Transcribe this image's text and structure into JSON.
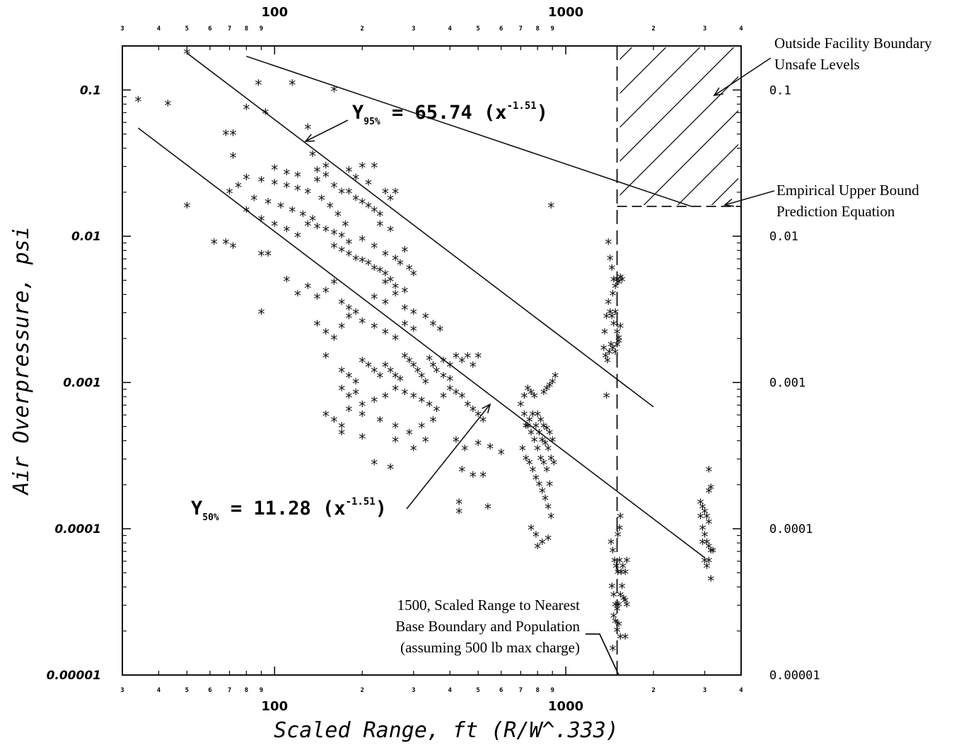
{
  "chart_data": {
    "type": "scatter",
    "title": "",
    "xlabel": "Scaled Range, ft (R/W^.333)",
    "ylabel": "Air Overpressure, psi",
    "xscale": "log",
    "yscale": "log",
    "xlim": [
      30,
      4000
    ],
    "ylim": [
      1e-05,
      0.2
    ],
    "grid": false,
    "x_major_labels": [
      "100",
      "1000"
    ],
    "y_left_labels": [
      "0.1",
      "0.01",
      "0.001",
      "0.0001",
      "0.00001"
    ],
    "y_right_labels": [
      "0.1",
      "0.01",
      "0.001",
      "0.0001",
      "0.00001"
    ],
    "minor_tick_text_x": {
      "below": [
        "3",
        "4",
        "5",
        "6",
        "7",
        "8",
        "9",
        "2",
        "3",
        "4",
        "5",
        "6",
        "7",
        "8",
        "9",
        "2",
        "3",
        "4"
      ],
      "above": [
        "3",
        "4",
        "5",
        "6",
        "7",
        "8",
        "9",
        "2",
        "3",
        "4",
        "5",
        "6",
        "7",
        "8",
        "9",
        "2",
        "3",
        "4"
      ]
    },
    "lines": [
      {
        "label_prefix": "Y",
        "label_sub": "95%",
        "label_body": " = 65.74 (x",
        "label_exp": "-1.51",
        "label_close": ")",
        "coefficient": 65.74,
        "exponent": -1.51,
        "x_range": [
          50,
          2000
        ]
      },
      {
        "label_prefix": "Y",
        "label_sub": "50%",
        "label_body": " = 11.28 (x",
        "label_exp": "-1.51",
        "label_close": ")",
        "coefficient": 11.28,
        "exponent": -1.51,
        "x_range": [
          34,
          3000
        ]
      },
      {
        "name": "Empirical Upper Bound Prediction Equation",
        "points": [
          [
            80,
            0.17
          ],
          [
            2700,
            0.016
          ]
        ]
      }
    ],
    "boundary_line_x": 1500,
    "unsafe_region": {
      "x": [
        1500,
        4000
      ],
      "y": [
        0.016,
        0.2
      ]
    },
    "annotations": {
      "unsafe": [
        "Outside Facility Boundary",
        "Unsafe Levels"
      ],
      "upper_bound": [
        "Empirical Upper Bound",
        "Prediction Equation"
      ],
      "boundary": [
        "1500, Scaled Range to Nearest",
        "Base Boundary and Population",
        "(assuming 500 lb max charge)"
      ]
    },
    "points": [
      [
        50,
        0.18
      ],
      [
        34,
        0.085
      ],
      [
        43,
        0.08
      ],
      [
        50,
        0.016
      ],
      [
        62,
        0.009
      ],
      [
        68,
        0.009
      ],
      [
        72,
        0.0085
      ],
      [
        68,
        0.05
      ],
      [
        72,
        0.05
      ],
      [
        80,
        0.075
      ],
      [
        88,
        0.11
      ],
      [
        93,
        0.07
      ],
      [
        115,
        0.11
      ],
      [
        160,
        0.1
      ],
      [
        72,
        0.035
      ],
      [
        130,
        0.055
      ],
      [
        135,
        0.036
      ],
      [
        90,
        0.0075
      ],
      [
        95,
        0.0075
      ],
      [
        90,
        0.003
      ],
      [
        890,
        0.016
      ],
      [
        75,
        0.022
      ],
      [
        70,
        0.02
      ],
      [
        80,
        0.025
      ],
      [
        90,
        0.024
      ],
      [
        100,
        0.023
      ],
      [
        110,
        0.022
      ],
      [
        120,
        0.021
      ],
      [
        130,
        0.02
      ],
      [
        140,
        0.024
      ],
      [
        150,
        0.026
      ],
      [
        160,
        0.022
      ],
      [
        85,
        0.018
      ],
      [
        95,
        0.017
      ],
      [
        105,
        0.016
      ],
      [
        115,
        0.015
      ],
      [
        125,
        0.014
      ],
      [
        135,
        0.013
      ],
      [
        145,
        0.018
      ],
      [
        155,
        0.016
      ],
      [
        165,
        0.014
      ],
      [
        175,
        0.012
      ],
      [
        80,
        0.015
      ],
      [
        90,
        0.013
      ],
      [
        100,
        0.012
      ],
      [
        110,
        0.011
      ],
      [
        120,
        0.01
      ],
      [
        130,
        0.012
      ],
      [
        140,
        0.0115
      ],
      [
        150,
        0.011
      ],
      [
        160,
        0.0105
      ],
      [
        170,
        0.01
      ],
      [
        180,
        0.02
      ],
      [
        190,
        0.018
      ],
      [
        200,
        0.017
      ],
      [
        210,
        0.016
      ],
      [
        220,
        0.015
      ],
      [
        230,
        0.014
      ],
      [
        240,
        0.02
      ],
      [
        250,
        0.018
      ],
      [
        180,
        0.028
      ],
      [
        200,
        0.03
      ],
      [
        220,
        0.03
      ],
      [
        260,
        0.02
      ],
      [
        100,
        0.029
      ],
      [
        110,
        0.027
      ],
      [
        120,
        0.026
      ],
      [
        140,
        0.028
      ],
      [
        150,
        0.03
      ],
      [
        170,
        0.02
      ],
      [
        190,
        0.025
      ],
      [
        210,
        0.023
      ],
      [
        230,
        0.012
      ],
      [
        250,
        0.011
      ],
      [
        160,
        0.0085
      ],
      [
        170,
        0.008
      ],
      [
        180,
        0.0075
      ],
      [
        190,
        0.007
      ],
      [
        200,
        0.0068
      ],
      [
        210,
        0.0065
      ],
      [
        220,
        0.006
      ],
      [
        230,
        0.0058
      ],
      [
        240,
        0.0055
      ],
      [
        250,
        0.005
      ],
      [
        180,
        0.009
      ],
      [
        200,
        0.0095
      ],
      [
        220,
        0.0085
      ],
      [
        240,
        0.0075
      ],
      [
        260,
        0.007
      ],
      [
        280,
        0.008
      ],
      [
        270,
        0.0065
      ],
      [
        290,
        0.006
      ],
      [
        300,
        0.0055
      ],
      [
        110,
        0.005
      ],
      [
        120,
        0.004
      ],
      [
        130,
        0.0045
      ],
      [
        140,
        0.0038
      ],
      [
        150,
        0.0042
      ],
      [
        160,
        0.0048
      ],
      [
        170,
        0.0035
      ],
      [
        180,
        0.0032
      ],
      [
        190,
        0.003
      ],
      [
        140,
        0.0025
      ],
      [
        150,
        0.0022
      ],
      [
        160,
        0.002
      ],
      [
        170,
        0.0024
      ],
      [
        180,
        0.0028
      ],
      [
        200,
        0.0026
      ],
      [
        220,
        0.0024
      ],
      [
        240,
        0.0022
      ],
      [
        260,
        0.002
      ],
      [
        280,
        0.0025
      ],
      [
        300,
        0.0023
      ],
      [
        240,
        0.0035
      ],
      [
        260,
        0.004
      ],
      [
        280,
        0.0042
      ],
      [
        260,
        0.0045
      ],
      [
        240,
        0.0048
      ],
      [
        220,
        0.0038
      ],
      [
        280,
        0.0032
      ],
      [
        300,
        0.003
      ],
      [
        330,
        0.0028
      ],
      [
        350,
        0.0025
      ],
      [
        370,
        0.0023
      ],
      [
        150,
        0.0015
      ],
      [
        170,
        0.0012
      ],
      [
        180,
        0.0011
      ],
      [
        190,
        0.001
      ],
      [
        200,
        0.0014
      ],
      [
        210,
        0.0013
      ],
      [
        220,
        0.0012
      ],
      [
        230,
        0.0011
      ],
      [
        240,
        0.0013
      ],
      [
        250,
        0.0012
      ],
      [
        260,
        0.0011
      ],
      [
        270,
        0.00105
      ],
      [
        280,
        0.0015
      ],
      [
        290,
        0.0014
      ],
      [
        300,
        0.0013
      ],
      [
        310,
        0.0012
      ],
      [
        320,
        0.0011
      ],
      [
        330,
        0.001
      ],
      [
        340,
        0.00145
      ],
      [
        350,
        0.0013
      ],
      [
        360,
        0.0012
      ],
      [
        380,
        0.0014
      ],
      [
        400,
        0.0013
      ],
      [
        420,
        0.0015
      ],
      [
        440,
        0.0014
      ],
      [
        460,
        0.0015
      ],
      [
        480,
        0.0013
      ],
      [
        500,
        0.0015
      ],
      [
        380,
        0.0011
      ],
      [
        400,
        0.00105
      ],
      [
        170,
        0.0009
      ],
      [
        180,
        0.0008
      ],
      [
        190,
        0.00085
      ],
      [
        200,
        0.0007
      ],
      [
        220,
        0.00075
      ],
      [
        240,
        0.0008
      ],
      [
        260,
        0.0009
      ],
      [
        280,
        0.00085
      ],
      [
        300,
        0.0008
      ],
      [
        320,
        0.00075
      ],
      [
        340,
        0.0007
      ],
      [
        360,
        0.00065
      ],
      [
        380,
        0.0008
      ],
      [
        400,
        0.0009
      ],
      [
        420,
        0.00085
      ],
      [
        440,
        0.0008
      ],
      [
        460,
        0.0007
      ],
      [
        480,
        0.00065
      ],
      [
        500,
        0.0006
      ],
      [
        520,
        0.00055
      ],
      [
        150,
        0.0006
      ],
      [
        160,
        0.00055
      ],
      [
        170,
        0.0005
      ],
      [
        180,
        0.00065
      ],
      [
        200,
        0.0006
      ],
      [
        230,
        0.00055
      ],
      [
        260,
        0.0005
      ],
      [
        290,
        0.00045
      ],
      [
        320,
        0.0005
      ],
      [
        350,
        0.00055
      ],
      [
        170,
        0.00045
      ],
      [
        200,
        0.00042
      ],
      [
        260,
        0.0004
      ],
      [
        300,
        0.00035
      ],
      [
        330,
        0.0004
      ],
      [
        420,
        0.0004
      ],
      [
        450,
        0.00035
      ],
      [
        500,
        0.00038
      ],
      [
        550,
        0.00036
      ],
      [
        600,
        0.00033
      ],
      [
        220,
        0.00028
      ],
      [
        250,
        0.00026
      ],
      [
        440,
        0.00025
      ],
      [
        480,
        0.00023
      ],
      [
        520,
        0.00023
      ],
      [
        430,
        0.00015
      ],
      [
        430,
        0.00013
      ],
      [
        540,
        0.00014
      ],
      [
        700,
        0.0007
      ],
      [
        720,
        0.0006
      ],
      [
        740,
        0.0005
      ],
      [
        760,
        0.00045
      ],
      [
        780,
        0.0004
      ],
      [
        800,
        0.00035
      ],
      [
        820,
        0.0003
      ],
      [
        840,
        0.00028
      ],
      [
        860,
        0.00025
      ],
      [
        880,
        0.0002
      ],
      [
        710,
        0.00035
      ],
      [
        730,
        0.0003
      ],
      [
        750,
        0.00028
      ],
      [
        770,
        0.00025
      ],
      [
        790,
        0.00022
      ],
      [
        810,
        0.0002
      ],
      [
        830,
        0.00018
      ],
      [
        850,
        0.00016
      ],
      [
        870,
        0.00014
      ],
      [
        890,
        0.00012
      ],
      [
        720,
        0.0008
      ],
      [
        740,
        0.0009
      ],
      [
        760,
        0.00085
      ],
      [
        780,
        0.0008
      ],
      [
        800,
        0.0006
      ],
      [
        820,
        0.00055
      ],
      [
        840,
        0.0005
      ],
      [
        860,
        0.00048
      ],
      [
        880,
        0.00045
      ],
      [
        900,
        0.0004
      ],
      [
        730,
        0.0005
      ],
      [
        750,
        0.00055
      ],
      [
        770,
        0.0006
      ],
      [
        790,
        0.0005
      ],
      [
        810,
        0.00045
      ],
      [
        830,
        0.0004
      ],
      [
        850,
        0.00038
      ],
      [
        870,
        0.00035
      ],
      [
        890,
        0.0003
      ],
      [
        910,
        0.00028
      ],
      [
        760,
        0.0001
      ],
      [
        790,
        9e-05
      ],
      [
        800,
        7.5e-05
      ],
      [
        830,
        8e-05
      ],
      [
        870,
        8.5e-05
      ],
      [
        900,
        0.001
      ],
      [
        920,
        0.0011
      ],
      [
        880,
        0.00095
      ],
      [
        860,
        0.0009
      ],
      [
        840,
        0.00085
      ],
      [
        1400,
        0.009
      ],
      [
        1420,
        0.007
      ],
      [
        1440,
        0.006
      ],
      [
        1460,
        0.005
      ],
      [
        1480,
        0.0045
      ],
      [
        1500,
        0.005
      ],
      [
        1520,
        0.0048
      ],
      [
        1540,
        0.0052
      ],
      [
        1560,
        0.005
      ],
      [
        1450,
        0.004
      ],
      [
        1400,
        0.0035
      ],
      [
        1420,
        0.003
      ],
      [
        1440,
        0.0028
      ],
      [
        1460,
        0.0025
      ],
      [
        1480,
        0.003
      ],
      [
        1500,
        0.0022
      ],
      [
        1520,
        0.002
      ],
      [
        1540,
        0.0024
      ],
      [
        1360,
        0.0022
      ],
      [
        1380,
        0.0028
      ],
      [
        1350,
        0.0017
      ],
      [
        1370,
        0.0015
      ],
      [
        1390,
        0.0014
      ],
      [
        1410,
        0.0016
      ],
      [
        1430,
        0.0018
      ],
      [
        1450,
        0.0017
      ],
      [
        1480,
        0.0016
      ],
      [
        1500,
        0.0018
      ],
      [
        1520,
        0.0019
      ],
      [
        1380,
        0.0008
      ],
      [
        1430,
        8e-05
      ],
      [
        1450,
        7e-05
      ],
      [
        1470,
        6e-05
      ],
      [
        1490,
        5.5e-05
      ],
      [
        1510,
        5e-05
      ],
      [
        1530,
        6e-05
      ],
      [
        1550,
        5e-05
      ],
      [
        1570,
        5.5e-05
      ],
      [
        1600,
        5e-05
      ],
      [
        1620,
        6e-05
      ],
      [
        1440,
        4e-05
      ],
      [
        1460,
        3.5e-05
      ],
      [
        1480,
        3e-05
      ],
      [
        1500,
        2.8e-05
      ],
      [
        1520,
        3e-05
      ],
      [
        1540,
        3.5e-05
      ],
      [
        1560,
        4e-05
      ],
      [
        1580,
        3.3e-05
      ],
      [
        1600,
        3.2e-05
      ],
      [
        1620,
        3e-05
      ],
      [
        1460,
        2.5e-05
      ],
      [
        1480,
        2.3e-05
      ],
      [
        1500,
        2e-05
      ],
      [
        1520,
        2.2e-05
      ],
      [
        1540,
        1.8e-05
      ],
      [
        1450,
        1.5e-05
      ],
      [
        1540,
        0.00012
      ],
      [
        1530,
        0.0001
      ],
      [
        1510,
        9e-05
      ],
      [
        1600,
        1.8e-05
      ],
      [
        2900,
        0.00012
      ],
      [
        2950,
        0.0001
      ],
      [
        3000,
        9e-05
      ],
      [
        3050,
        8e-05
      ],
      [
        3100,
        7.5e-05
      ],
      [
        3150,
        7e-05
      ],
      [
        3200,
        7e-05
      ],
      [
        3100,
        6e-05
      ],
      [
        3050,
        5.5e-05
      ],
      [
        3150,
        4.5e-05
      ],
      [
        2900,
        0.00015
      ],
      [
        2950,
        0.00014
      ],
      [
        3000,
        0.00013
      ],
      [
        3050,
        0.00012
      ],
      [
        3100,
        0.00011
      ],
      [
        3100,
        0.00018
      ],
      [
        3150,
        0.00019
      ],
      [
        3100,
        0.00025
      ],
      [
        2950,
        8e-05
      ],
      [
        3000,
        6e-05
      ]
    ]
  }
}
